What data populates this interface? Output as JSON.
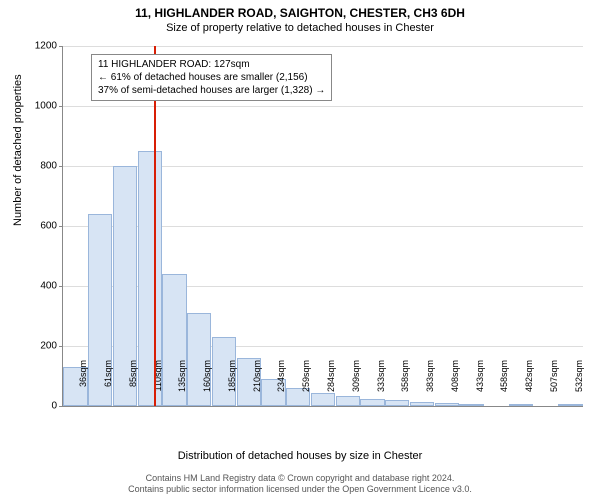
{
  "title_main": "11, HIGHLANDER ROAD, SAIGHTON, CHESTER, CH3 6DH",
  "title_sub": "Size of property relative to detached houses in Chester",
  "y_axis_label": "Number of detached properties",
  "x_axis_label": "Distribution of detached houses by size in Chester",
  "footer_line1": "Contains HM Land Registry data © Crown copyright and database right 2024.",
  "footer_line2": "Contains public sector information licensed under the Open Government Licence v3.0.",
  "annotation": {
    "line1": "11 HIGHLANDER ROAD: 127sqm",
    "line2": "← 61% of detached houses are smaller (2,156)",
    "line3": "37% of semi-detached houses are larger (1,328) →"
  },
  "chart": {
    "type": "histogram",
    "ylim": [
      0,
      1200
    ],
    "ytick_step": 200,
    "bar_fill": "#d7e4f4",
    "bar_border": "#9ab6db",
    "grid_color": "#dddddd",
    "marker_value": 127,
    "marker_color": "#d81e05",
    "background_color": "#ffffff",
    "x_labels": [
      "36sqm",
      "61sqm",
      "85sqm",
      "110sqm",
      "135sqm",
      "160sqm",
      "185sqm",
      "210sqm",
      "234sqm",
      "259sqm",
      "284sqm",
      "309sqm",
      "333sqm",
      "358sqm",
      "383sqm",
      "408sqm",
      "433sqm",
      "458sqm",
      "482sqm",
      "507sqm",
      "532sqm"
    ],
    "values": [
      130,
      640,
      800,
      850,
      440,
      310,
      230,
      160,
      90,
      60,
      45,
      35,
      25,
      20,
      15,
      10,
      7,
      0,
      5,
      0,
      5
    ],
    "title_fontsize": 12,
    "label_fontsize": 11,
    "tick_fontsize": 10
  }
}
